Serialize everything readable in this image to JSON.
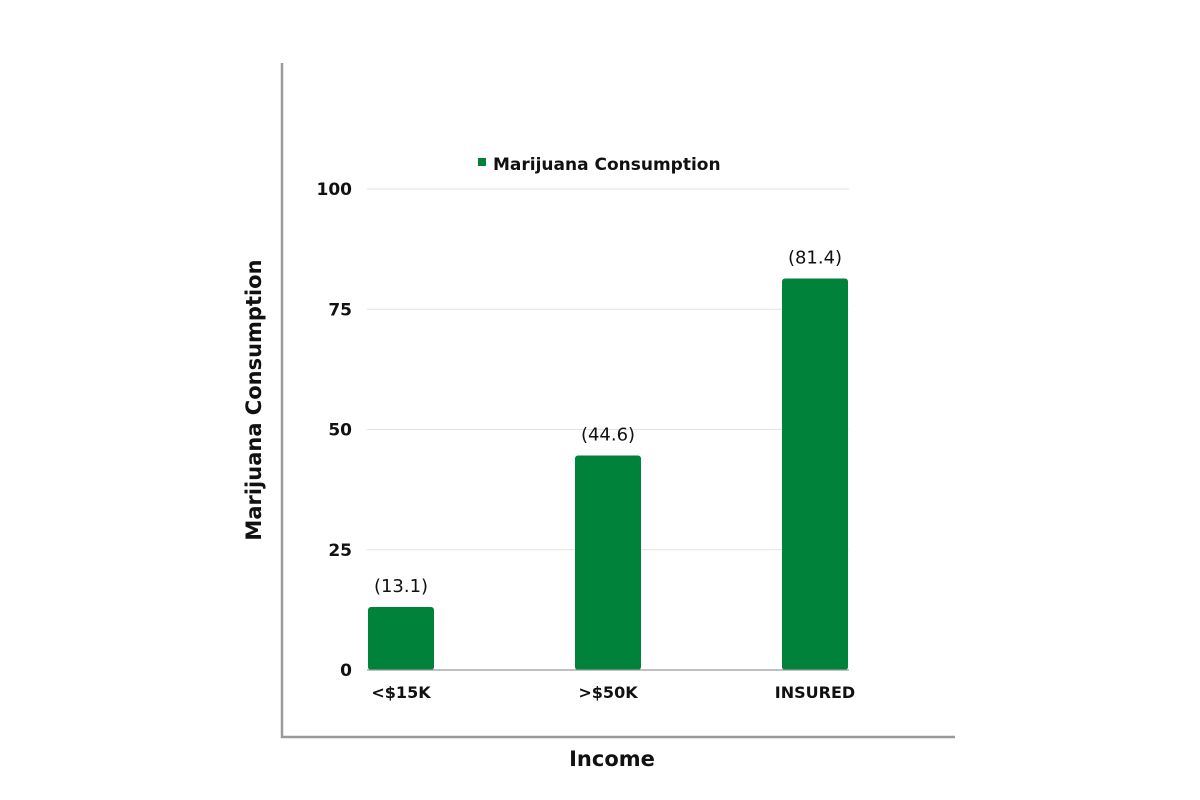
{
  "chart_data": {
    "type": "bar",
    "categories": [
      "<$15K",
      ">$50K",
      "INSURED"
    ],
    "series": [
      {
        "name": "Marijuana Consumption",
        "values": [
          13.1,
          44.6,
          81.4
        ],
        "data_labels": [
          "(13.1)",
          "(44.6)",
          "(81.4)"
        ],
        "color": "#00823a"
      }
    ],
    "xlabel": "Income",
    "ylabel": "Marijuana Consumption",
    "ylim": [
      0,
      100
    ],
    "yticks": [
      0,
      25,
      50,
      75,
      100
    ],
    "ytick_labels": [
      "0",
      "25",
      "50",
      "75",
      "100"
    ],
    "grid": true,
    "legend": "top-center"
  }
}
